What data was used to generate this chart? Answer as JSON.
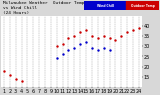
{
  "title": "Milwaukee Weather  Outdoor Temp\nvs Wind Chill\n(24 Hours)",
  "bg_color": "#d8d8d8",
  "plot_bg": "#ffffff",
  "legend_blue_label": "Wind Chill",
  "legend_red_label": "Outdoor Temp",
  "hours": [
    1,
    2,
    3,
    4,
    5,
    6,
    7,
    8,
    9,
    10,
    11,
    12,
    13,
    14,
    15,
    16,
    17,
    18,
    19,
    20,
    21,
    22,
    23,
    24
  ],
  "temp": [
    18,
    16,
    14,
    13,
    null,
    null,
    null,
    null,
    null,
    30,
    31,
    34,
    35,
    37,
    38,
    35,
    34,
    35,
    34,
    33,
    35,
    37,
    38,
    39
  ],
  "wind_chill": [
    null,
    null,
    null,
    null,
    null,
    null,
    null,
    null,
    null,
    24,
    26,
    28,
    29,
    31,
    32,
    29,
    28,
    29,
    28,
    null,
    null,
    null,
    null,
    null
  ],
  "ylim": [
    10,
    45
  ],
  "yticks": [
    15,
    20,
    25,
    30,
    35,
    40
  ],
  "xlim": [
    0.5,
    24.5
  ],
  "xticks": [
    1,
    2,
    3,
    4,
    5,
    6,
    7,
    8,
    9,
    10,
    11,
    12,
    13,
    14,
    15,
    16,
    17,
    18,
    19,
    20,
    21,
    22,
    23,
    24
  ],
  "dot_size": 3,
  "temp_color": "#cc0000",
  "wind_color": "#0000cc",
  "grid_color": "#999999",
  "axis_text_size": 3.5,
  "title_fontsize": 3.2,
  "legend_bar_blue": "#0000cc",
  "legend_bar_red": "#cc0000"
}
